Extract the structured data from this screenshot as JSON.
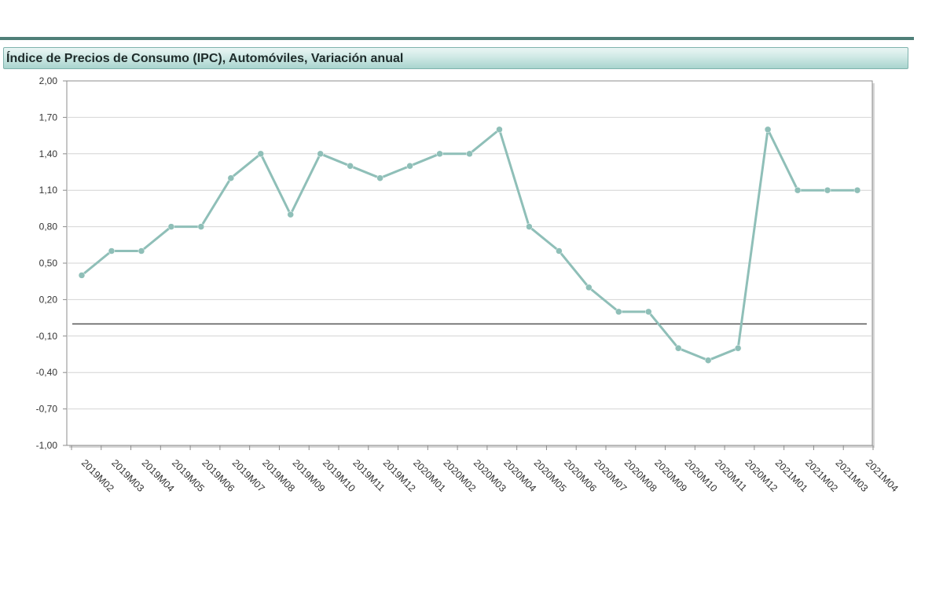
{
  "title": "Índice de Precios de Consumo (IPC), Automóviles, Variación anual",
  "chart_data": {
    "type": "line",
    "title": "Índice de Precios de Consumo (IPC), Automóviles, Variación anual",
    "xlabel": "",
    "ylabel": "",
    "ylim": [
      -1.0,
      2.0
    ],
    "yticks": [
      "-1,00",
      "-0,70",
      "-0,40",
      "-0,10",
      "0,20",
      "0,50",
      "0,80",
      "1,10",
      "1,40",
      "1,70",
      "2,00"
    ],
    "grid": true,
    "reference_line": 0,
    "categories": [
      "2019M02",
      "2019M03",
      "2019M04",
      "2019M05",
      "2019M06",
      "2019M07",
      "2019M08",
      "2019M09",
      "2019M10",
      "2019M11",
      "2019M12",
      "2020M01",
      "2020M02",
      "2020M03",
      "2020M04",
      "2020M05",
      "2020M06",
      "2020M07",
      "2020M08",
      "2020M09",
      "2020M10",
      "2020M11",
      "2020M12",
      "2021M01",
      "2021M02",
      "2021M03",
      "2021M04"
    ],
    "series": [
      {
        "color": "#8fbfb8",
        "values": [
          0.4,
          0.6,
          0.6,
          0.8,
          0.8,
          1.2,
          1.4,
          0.9,
          1.4,
          1.3,
          1.2,
          1.3,
          1.4,
          1.4,
          1.6,
          0.8,
          0.6,
          0.3,
          0.1,
          0.1,
          -0.2,
          -0.3,
          -0.2,
          1.6,
          1.1,
          1.1,
          1.1
        ]
      }
    ]
  }
}
